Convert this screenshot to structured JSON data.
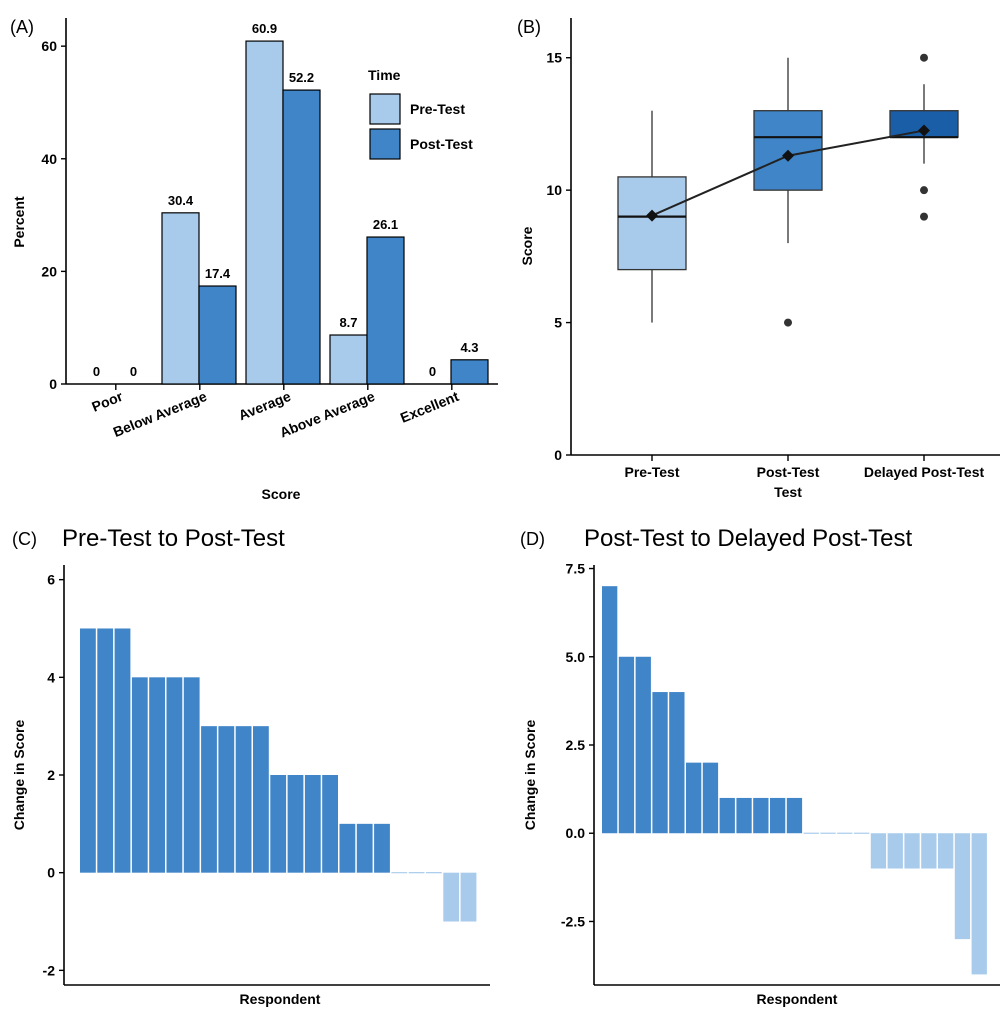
{
  "chart_data": [
    {
      "panel": "(A)",
      "type": "bar",
      "title": "",
      "xlabel": "Score",
      "ylabel": "Percent",
      "ylim": [
        0,
        65
      ],
      "yticks": [
        "0",
        "20",
        "40",
        "60"
      ],
      "categories": [
        "Poor",
        "Below Average",
        "Average",
        "Above Average",
        "Excellent"
      ],
      "legend_title": "Time",
      "legend_position": "top-right",
      "series": [
        {
          "name": "Pre-Test",
          "color": "#a8cbec",
          "values": [
            0,
            30.4,
            60.9,
            8.7,
            0
          ],
          "labels": [
            "0",
            "30.4",
            "60.9",
            "8.7",
            "0"
          ]
        },
        {
          "name": "Post-Test",
          "color": "#3f85c8",
          "values": [
            0,
            17.4,
            52.2,
            26.1,
            4.3
          ],
          "labels": [
            "0",
            "17.4",
            "52.2",
            "26.1",
            "4.3"
          ]
        }
      ]
    },
    {
      "panel": "(B)",
      "type": "box",
      "title": "",
      "xlabel": "Test",
      "ylabel": "Score",
      "ylim": [
        0,
        16.5
      ],
      "yticks": [
        "0",
        "5",
        "10",
        "15"
      ],
      "categories": [
        "Pre-Test",
        "Post-Test",
        "Delayed Post-Test"
      ],
      "boxes": [
        {
          "category": "Pre-Test",
          "color": "#a8cbec",
          "whisker_low": 5,
          "q1": 7,
          "median": 9,
          "q3": 10.5,
          "whisker_high": 13,
          "mean": 9.04,
          "outliers": []
        },
        {
          "category": "Post-Test",
          "color": "#3f85c8",
          "whisker_low": 8,
          "q1": 10,
          "median": 12,
          "q3": 13,
          "whisker_high": 15,
          "mean": 11.3,
          "outliers": [
            5
          ]
        },
        {
          "category": "Delayed Post-Test",
          "color": "#1a5ea8",
          "whisker_low": 11,
          "q1": 12,
          "median": 12,
          "q3": 13,
          "whisker_high": 14,
          "mean": 12.25,
          "outliers": [
            15,
            10,
            9
          ]
        }
      ]
    },
    {
      "panel": "(C)",
      "type": "bar",
      "title": "Pre-Test to Post-Test",
      "xlabel": "Respondent",
      "ylabel": "Change in Score",
      "ylim": [
        -2.3,
        6.3
      ],
      "yticks": [
        "-2",
        "0",
        "2",
        "4",
        "6"
      ],
      "colors": {
        "positive": "#3f85c8",
        "negative": "#a8cbec"
      },
      "values": [
        5,
        5,
        5,
        4,
        4,
        4,
        4,
        3,
        3,
        3,
        3,
        2,
        2,
        2,
        2,
        1,
        1,
        1,
        0,
        0,
        0,
        -1,
        -1
      ]
    },
    {
      "panel": "(D)",
      "type": "bar",
      "title": "Post-Test to Delayed Post-Test",
      "xlabel": "Respondent",
      "ylabel": "Change in Score",
      "ylim": [
        -4.3,
        7.6
      ],
      "yticks": [
        "-2.5",
        "0.0",
        "2.5",
        "5.0",
        "7.5"
      ],
      "colors": {
        "positive": "#3f85c8",
        "negative": "#a8cbec"
      },
      "values": [
        7,
        5,
        5,
        4,
        4,
        2,
        2,
        1,
        1,
        1,
        1,
        1,
        0,
        0,
        0,
        0,
        -1,
        -1,
        -1,
        -1,
        -1,
        -3,
        -4
      ]
    }
  ]
}
